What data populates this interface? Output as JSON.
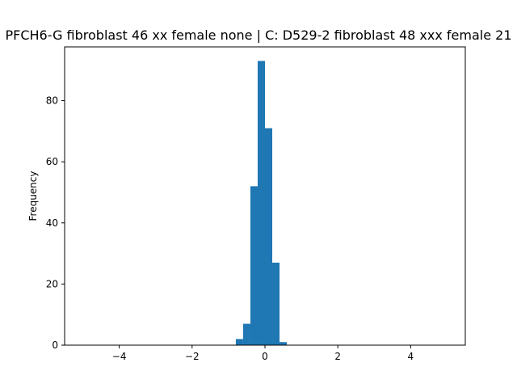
{
  "chart_data": {
    "type": "bar",
    "title": "PFCH6-G fibroblast 46 xx female none | C: D529-2 fibroblast 48 xxx female 21",
    "xlabel": "",
    "ylabel": "Frequency",
    "xlim": [
      -5.5,
      5.5
    ],
    "ylim": [
      0,
      97.6
    ],
    "xticks": [
      -4,
      -2,
      0,
      2,
      4
    ],
    "xtick_labels": [
      "−4",
      "−2",
      "0",
      "2",
      "4"
    ],
    "yticks": [
      0,
      20,
      40,
      60,
      80
    ],
    "ytick_labels": [
      "0",
      "20",
      "40",
      "60",
      "80"
    ],
    "bar_color": "#1f77b4",
    "grid": false,
    "bins": [
      {
        "x0": -0.8,
        "x1": -0.6,
        "count": 2
      },
      {
        "x0": -0.6,
        "x1": -0.4,
        "count": 7
      },
      {
        "x0": -0.4,
        "x1": -0.2,
        "count": 52
      },
      {
        "x0": -0.2,
        "x1": 0.0,
        "count": 93
      },
      {
        "x0": 0.0,
        "x1": 0.2,
        "count": 71
      },
      {
        "x0": 0.2,
        "x1": 0.4,
        "count": 27
      },
      {
        "x0": 0.4,
        "x1": 0.6,
        "count": 1
      }
    ]
  }
}
